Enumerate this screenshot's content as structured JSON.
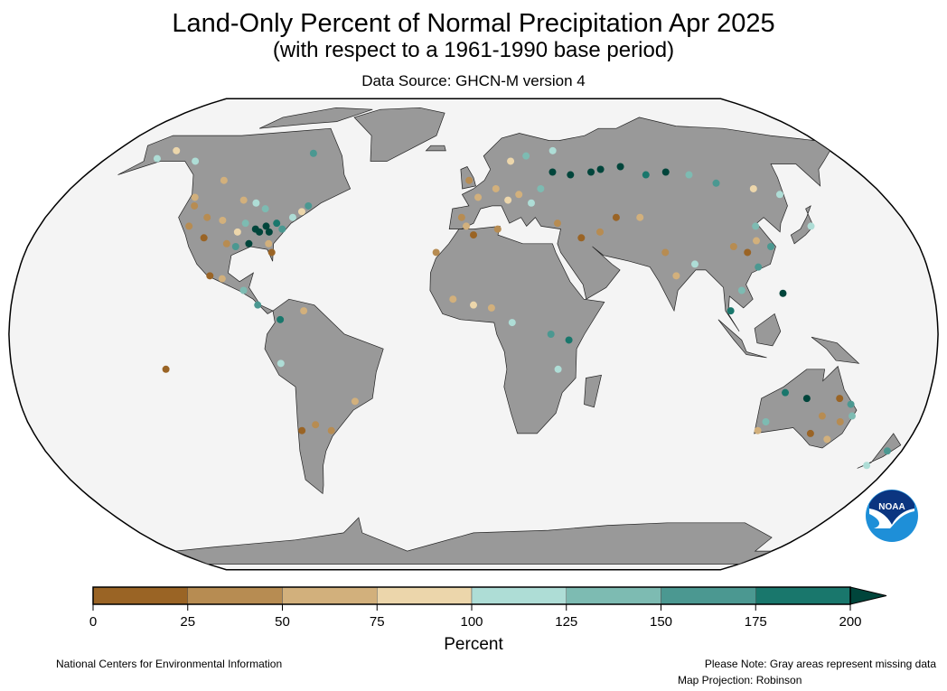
{
  "title": "Land-Only Percent of Normal Precipitation Apr 2025",
  "subtitle": "(with respect to a 1961-1990 base period)",
  "source": "Data Source: GHCN-M version 4",
  "footer": {
    "left": "National Centers for Environmental Information",
    "note": "Please Note: Gray areas represent missing data",
    "projection": "Map Projection: Robinson"
  },
  "logo_text": "NOAA",
  "colors": {
    "land_missing": "#999999",
    "ocean": "#f4f4f4",
    "bins": [
      "#9a6425",
      "#b78c52",
      "#d2b07c",
      "#ecd6ab",
      "#aeddd6",
      "#7dbbb2",
      "#4b9891",
      "#19776c",
      "#00453b"
    ]
  },
  "chart_data": {
    "type": "scatter",
    "projection": "Robinson",
    "colorbar": {
      "title": "Percent",
      "ticks": [
        "0",
        "25",
        "50",
        "75",
        "100",
        "125",
        "150",
        "175",
        "200"
      ],
      "extend": "max"
    },
    "stations_lon_lat_percent": [
      [
        -122,
        47,
        60
      ],
      [
        -120,
        44,
        40
      ],
      [
        -118,
        37,
        30
      ],
      [
        -112,
        40,
        45
      ],
      [
        -105,
        39,
        70
      ],
      [
        -110,
        33,
        20
      ],
      [
        -100,
        31,
        40
      ],
      [
        -97,
        35,
        80
      ],
      [
        -95,
        38,
        130
      ],
      [
        -90,
        36,
        230
      ],
      [
        -88,
        35,
        240
      ],
      [
        -86,
        37,
        220
      ],
      [
        -84,
        35,
        210
      ],
      [
        -82,
        38,
        180
      ],
      [
        -79,
        36,
        160
      ],
      [
        -76,
        40,
        110
      ],
      [
        -73,
        42,
        90
      ],
      [
        -71,
        44,
        150
      ],
      [
        -94,
        45,
        120
      ],
      [
        -89,
        43,
        140
      ],
      [
        -100,
        46,
        60
      ],
      [
        -96,
        30,
        170
      ],
      [
        -91,
        31,
        210
      ],
      [
        -83,
        31,
        60
      ],
      [
        -81,
        28,
        20
      ],
      [
        -104,
        20,
        15
      ],
      [
        -99,
        19,
        50
      ],
      [
        -90,
        15,
        130
      ],
      [
        -84,
        10,
        160
      ],
      [
        -75,
        5,
        190
      ],
      [
        -66,
        8,
        60
      ],
      [
        -75,
        -10,
        110
      ],
      [
        -58,
        -33,
        40
      ],
      [
        -64,
        -31,
        30
      ],
      [
        -70,
        -33,
        20
      ],
      [
        -47,
        -23,
        60
      ],
      [
        -155,
        61,
        110
      ],
      [
        -150,
        64,
        90
      ],
      [
        -135,
        60,
        120
      ],
      [
        -114,
        53,
        70
      ],
      [
        -80,
        63,
        150
      ],
      [
        -5,
        40,
        40
      ],
      [
        -3,
        37,
        60
      ],
      [
        2,
        47,
        70
      ],
      [
        10,
        50,
        50
      ],
      [
        15,
        46,
        90
      ],
      [
        20,
        48,
        60
      ],
      [
        25,
        45,
        110
      ],
      [
        30,
        50,
        140
      ],
      [
        37,
        56,
        220
      ],
      [
        45,
        55,
        210
      ],
      [
        55,
        56,
        230
      ],
      [
        60,
        57,
        200
      ],
      [
        70,
        58,
        240
      ],
      [
        80,
        55,
        190
      ],
      [
        90,
        56,
        220
      ],
      [
        100,
        55,
        140
      ],
      [
        110,
        52,
        170
      ],
      [
        125,
        50,
        80
      ],
      [
        135,
        48,
        110
      ],
      [
        -2,
        53,
        40
      ],
      [
        18,
        60,
        90
      ],
      [
        26,
        62,
        140
      ],
      [
        40,
        64,
        120
      ],
      [
        35,
        38,
        30
      ],
      [
        44,
        33,
        20
      ],
      [
        52,
        35,
        40
      ],
      [
        60,
        40,
        10
      ],
      [
        70,
        40,
        60
      ],
      [
        77,
        28,
        40
      ],
      [
        80,
        20,
        70
      ],
      [
        88,
        24,
        110
      ],
      [
        105,
        30,
        30
      ],
      [
        110,
        28,
        20
      ],
      [
        115,
        32,
        60
      ],
      [
        117,
        37,
        130
      ],
      [
        120,
        30,
        170
      ],
      [
        113,
        23,
        150
      ],
      [
        105,
        15,
        140
      ],
      [
        100,
        8,
        190
      ],
      [
        121,
        14,
        200
      ],
      [
        140,
        37,
        110
      ],
      [
        -8,
        12,
        50
      ],
      [
        0,
        10,
        90
      ],
      [
        7,
        9,
        70
      ],
      [
        15,
        4,
        120
      ],
      [
        30,
        0,
        160
      ],
      [
        37,
        -2,
        190
      ],
      [
        33,
        -12,
        110
      ],
      [
        -15,
        28,
        30
      ],
      [
        10,
        36,
        40
      ],
      [
        0,
        34,
        20
      ],
      [
        118,
        -30,
        130
      ],
      [
        123,
        -20,
        180
      ],
      [
        132,
        -22,
        210
      ],
      [
        140,
        -28,
        30
      ],
      [
        145,
        -22,
        20
      ],
      [
        148,
        -30,
        40
      ],
      [
        150,
        -24,
        160
      ],
      [
        152,
        -28,
        130
      ],
      [
        146,
        -36,
        50
      ],
      [
        138,
        -34,
        20
      ],
      [
        116,
        -33,
        60
      ],
      [
        174,
        -40,
        150
      ],
      [
        170,
        -45,
        110
      ],
      [
        -120,
        -12,
        1
      ]
    ]
  }
}
